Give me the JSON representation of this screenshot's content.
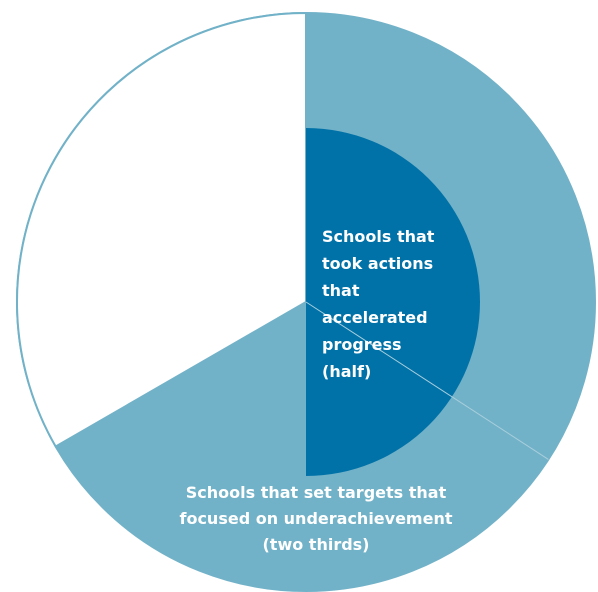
{
  "chart_data": {
    "type": "pie",
    "title": "",
    "description_labels": {
      "outer": "Schools that set targets that focused on underachievement (two thirds)",
      "inner": "Schools that took actions that accelerated progress (half)"
    },
    "slices": [
      {
        "label_lines": [
          "Schools that set targets that",
          "focused on underachievement",
          "(two thirds)"
        ],
        "fraction": 0.6667,
        "color": "#72b2c8",
        "layer": "outer"
      },
      {
        "label_lines": [],
        "fraction": 0.3333,
        "color": "#ffffff",
        "layer": "outer"
      },
      {
        "label_lines": [
          "Schools that",
          "took actions",
          "that",
          "accelerated",
          "progress",
          "(half)"
        ],
        "fraction": 0.5,
        "color": "#0072a8",
        "layer": "inner"
      }
    ],
    "colors": {
      "outer_ring": "#72b2c8",
      "inner_half": "#0072a8",
      "background_slice": "#ffffff",
      "outline": "#72b2c8",
      "divider": "#a9cfdd",
      "label_text": "#ffffff"
    }
  }
}
